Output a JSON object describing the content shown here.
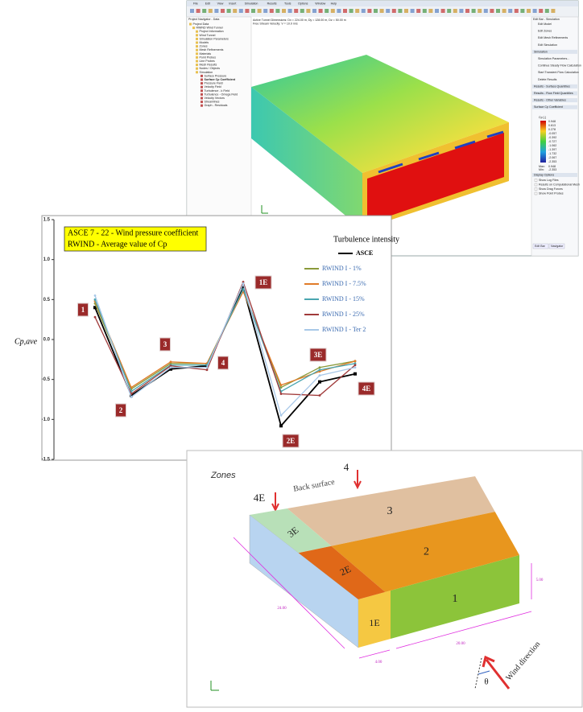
{
  "window": {
    "menu": [
      "File",
      "Edit",
      "View",
      "Insert",
      "Simulation",
      "Results",
      "Tools",
      "Options",
      "Window",
      "Help"
    ],
    "navigator_title": "Project Navigator - Data",
    "tree": [
      "Project Data",
      "RWIND Wind Tunnel",
      "Project Information",
      "Wind Tunnel",
      "Simulation Parameters",
      "Models",
      "Zones",
      "Mesh Refinements",
      "Materials",
      "Point Probes",
      "Line Probes",
      "Mesh Results",
      "Nodes / Objects",
      "Simulation",
      "Surface Pressure",
      "Surface Cp Coefficient",
      "Pressure Field",
      "Velocity Field",
      "Turbulence - k Field",
      "Turbulence - Omega Field",
      "Velocity Vectors",
      "Streamlines",
      "Graph - Residuals"
    ],
    "info": [
      "Active Tunnel Dimensions: Dx = 224.00 m, Dy = 128.00 m, Dz = 50.00 m",
      "Free Stream Velocity: V = 10.0 m/s"
    ],
    "panel_title": "Edit Bar - Simulation",
    "panel_items": [
      "Edit Model",
      "Edit Zones",
      "Edit Mesh Refinements",
      "Edit Simulation",
      "Simulation",
      "Simulation Parameters...",
      "Continue Steady Flow Calculation",
      "Start Transient Flow Calculation",
      "Delete Results",
      "Results - Surface Quantities",
      "Results - Flow Field Quantities",
      "Results - Other Variables",
      "Surface Cp Coefficient"
    ],
    "legend_title": "Cp [-]",
    "legend_values": [
      "0.948",
      "0.613",
      "0.278",
      "-0.057",
      "-0.392",
      "-0.727",
      "-1.062",
      "-1.397",
      "-1.732",
      "-2.067",
      "-2.353"
    ],
    "max_label": "Max:",
    "max": "0.948",
    "min_label": "Min:",
    "min": "-2.353",
    "options_title": "Display Options",
    "options": [
      "Show Log Files",
      "Results on Computational Mesh",
      "Show Drag Forces",
      "Show Point Probes"
    ],
    "tabs": [
      "Edit Bar",
      "Navigator"
    ]
  },
  "chart_data": {
    "type": "line",
    "title": "ASCE 7 - 22 - Wind pressure coefficient",
    "subtitle": "RWIND - Average value of Cp",
    "y_label": "Cp,ave",
    "x_label": "Zones",
    "legend_title": "Turbulence intensity",
    "categories": [
      "1",
      "2",
      "3",
      "4",
      "1E",
      "2E",
      "3E",
      "4E"
    ],
    "series": [
      {
        "name": "ASCE",
        "color": "#000000",
        "values": [
          0.4,
          -0.7,
          -0.37,
          -0.33,
          0.65,
          -1.08,
          -0.53,
          -0.43
        ]
      },
      {
        "name": "RWIND I - 1%",
        "color": "#8a9a3a",
        "values": [
          0.45,
          -0.62,
          -0.3,
          -0.3,
          0.62,
          -0.6,
          -0.35,
          -0.27
        ]
      },
      {
        "name": "RWIND I - 7.5%",
        "color": "#e07b28",
        "values": [
          0.48,
          -0.6,
          -0.28,
          -0.3,
          0.6,
          -0.57,
          -0.4,
          -0.27
        ]
      },
      {
        "name": "RWIND I - 15%",
        "color": "#4aa6b0",
        "values": [
          0.5,
          -0.65,
          -0.32,
          -0.32,
          0.63,
          -0.65,
          -0.38,
          -0.3
        ]
      },
      {
        "name": "RWIND I - 25%",
        "color": "#a03a3a",
        "values": [
          0.28,
          -0.68,
          -0.33,
          -0.38,
          0.72,
          -0.68,
          -0.7,
          -0.32
        ]
      },
      {
        "name": "RWIND I - Ter 2",
        "color": "#a8c8e8",
        "values": [
          0.55,
          -0.72,
          -0.35,
          -0.35,
          0.7,
          -0.95,
          -0.45,
          -0.35
        ]
      }
    ],
    "ylim": [
      -1.5,
      1.5
    ],
    "yticks": [
      1.5,
      {
        "value": 1,
        "label": "1.0"
      },
      0.5,
      {
        "value": 0,
        "label": "0.0"
      },
      -0.5,
      {
        "value": -1,
        "label": "-1.0"
      },
      -1.5
    ]
  },
  "diagram": {
    "zones": [
      "3",
      "2",
      "1",
      "3E",
      "2E",
      "1E"
    ],
    "back_left": "4E",
    "back_right": "4",
    "back_surface": "Back surface",
    "dim_depth": "24.00",
    "dim_e": "4.00",
    "dim_width": "20.00",
    "dim_height": "5.00",
    "wind": "Wind direction",
    "theta": "θ"
  }
}
